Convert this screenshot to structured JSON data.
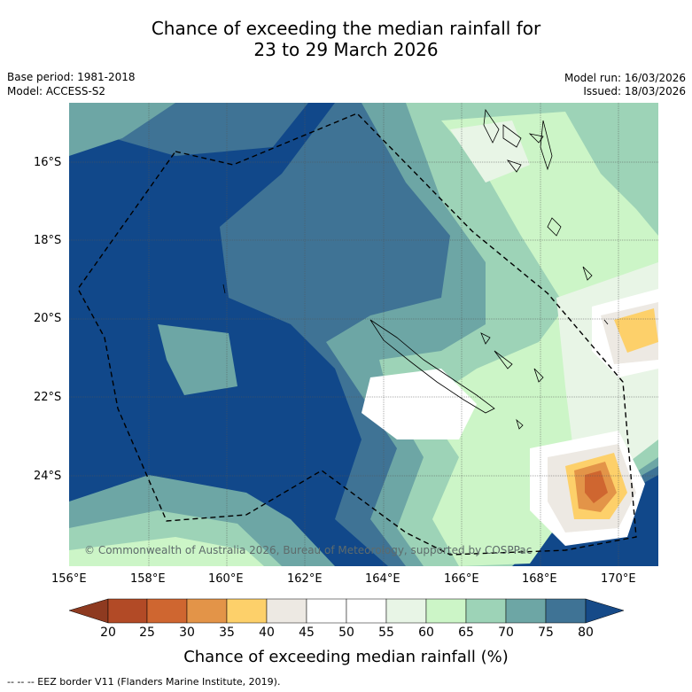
{
  "title_line1": "Chance of exceeding the median rainfall for",
  "title_line2": "23 to 29 March 2026",
  "base_period": "Base period: 1981-2018",
  "model": "Model: ACCESS-S2",
  "model_run": "Model run: 16/03/2026",
  "issued": "Issued: 18/03/2026",
  "copyright": "© Commonwealth of Australia 2026, Bureau of Meteorology, supported by COSPPac",
  "lat_ticks": [
    "16°S",
    "18°S",
    "20°S",
    "22°S",
    "24°S"
  ],
  "lon_ticks": [
    "156°E",
    "158°E",
    "160°E",
    "162°E",
    "164°E",
    "166°E",
    "168°E",
    "170°E"
  ],
  "colorbar": {
    "label": "Chance of exceeding median rainfall (%)",
    "ticks": [
      "20",
      "25",
      "30",
      "35",
      "40",
      "45",
      "50",
      "55",
      "60",
      "65",
      "70",
      "75",
      "80"
    ],
    "colors": [
      "#8e3a20",
      "#b24a26",
      "#cf6630",
      "#e39448",
      "#fdd06a",
      "#ede9e3",
      "#ffffff",
      "#ffffff",
      "#e8f5e6",
      "#ccf5c7",
      "#9dd3b7",
      "#6da6a5",
      "#3f7395",
      "#164a88"
    ]
  },
  "footer": "--  --  -- EEZ border V11 (Flanders Marine Institute, 2019).",
  "icons": [
    "eez-border-dashed-line",
    "coastline"
  ]
}
